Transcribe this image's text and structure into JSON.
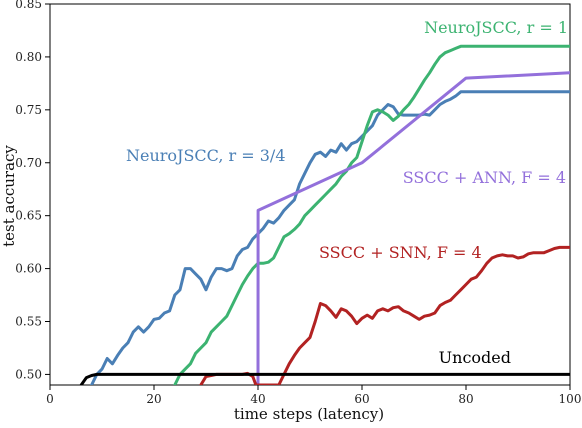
{
  "chart_data": {
    "type": "line",
    "xlabel": "time steps (latency)",
    "ylabel": "test accuracy",
    "xlim": [
      0,
      100
    ],
    "ylim": [
      0.49,
      0.85
    ],
    "xticks": [
      "0",
      "20",
      "40",
      "60",
      "80",
      "100"
    ],
    "yticks": [
      "0.50",
      "0.55",
      "0.60",
      "0.65",
      "0.70",
      "0.75",
      "0.80",
      "0.85"
    ],
    "grid": false,
    "series": [
      {
        "name": "NeuroJSCC, r = 3/4",
        "color": "#4a7fb5",
        "points": [
          [
            8,
            0.49
          ],
          [
            9,
            0.5
          ],
          [
            10,
            0.505
          ],
          [
            11,
            0.515
          ],
          [
            12,
            0.51
          ],
          [
            13,
            0.518
          ],
          [
            14,
            0.525
          ],
          [
            15,
            0.53
          ],
          [
            16,
            0.54
          ],
          [
            17,
            0.545
          ],
          [
            18,
            0.54
          ],
          [
            19,
            0.545
          ],
          [
            20,
            0.552
          ],
          [
            21,
            0.553
          ],
          [
            22,
            0.558
          ],
          [
            23,
            0.56
          ],
          [
            24,
            0.575
          ],
          [
            25,
            0.58
          ],
          [
            26,
            0.6
          ],
          [
            27,
            0.6
          ],
          [
            28,
            0.595
          ],
          [
            29,
            0.59
          ],
          [
            30,
            0.58
          ],
          [
            31,
            0.592
          ],
          [
            32,
            0.6
          ],
          [
            33,
            0.6
          ],
          [
            34,
            0.598
          ],
          [
            35,
            0.6
          ],
          [
            36,
            0.612
          ],
          [
            37,
            0.618
          ],
          [
            38,
            0.62
          ],
          [
            39,
            0.628
          ],
          [
            40,
            0.633
          ],
          [
            41,
            0.638
          ],
          [
            42,
            0.645
          ],
          [
            43,
            0.643
          ],
          [
            44,
            0.648
          ],
          [
            45,
            0.655
          ],
          [
            46,
            0.66
          ],
          [
            47,
            0.665
          ],
          [
            48,
            0.68
          ],
          [
            49,
            0.69
          ],
          [
            50,
            0.7
          ],
          [
            51,
            0.708
          ],
          [
            52,
            0.71
          ],
          [
            53,
            0.706
          ],
          [
            54,
            0.712
          ],
          [
            55,
            0.71
          ],
          [
            56,
            0.718
          ],
          [
            57,
            0.712
          ],
          [
            58,
            0.718
          ],
          [
            59,
            0.72
          ],
          [
            60,
            0.725
          ],
          [
            61,
            0.73
          ],
          [
            62,
            0.735
          ],
          [
            63,
            0.745
          ],
          [
            64,
            0.75
          ],
          [
            65,
            0.755
          ],
          [
            66,
            0.753
          ],
          [
            67,
            0.746
          ],
          [
            68,
            0.745
          ],
          [
            69,
            0.745
          ],
          [
            70,
            0.745
          ],
          [
            71,
            0.745
          ],
          [
            72,
            0.746
          ],
          [
            73,
            0.745
          ],
          [
            74,
            0.75
          ],
          [
            75,
            0.755
          ],
          [
            76,
            0.758
          ],
          [
            77,
            0.76
          ],
          [
            78,
            0.763
          ],
          [
            79,
            0.767
          ],
          [
            80,
            0.767
          ],
          [
            90,
            0.767
          ],
          [
            100,
            0.767
          ]
        ]
      },
      {
        "name": "NeuroJSCC, r = 1",
        "color": "#3cb371",
        "points": [
          [
            24,
            0.49
          ],
          [
            25,
            0.5
          ],
          [
            26,
            0.505
          ],
          [
            27,
            0.51
          ],
          [
            28,
            0.52
          ],
          [
            29,
            0.525
          ],
          [
            30,
            0.53
          ],
          [
            31,
            0.54
          ],
          [
            32,
            0.545
          ],
          [
            33,
            0.55
          ],
          [
            34,
            0.555
          ],
          [
            35,
            0.565
          ],
          [
            36,
            0.575
          ],
          [
            37,
            0.585
          ],
          [
            38,
            0.593
          ],
          [
            39,
            0.6
          ],
          [
            40,
            0.605
          ],
          [
            41,
            0.605
          ],
          [
            42,
            0.606
          ],
          [
            43,
            0.61
          ],
          [
            44,
            0.62
          ],
          [
            45,
            0.63
          ],
          [
            46,
            0.633
          ],
          [
            47,
            0.637
          ],
          [
            48,
            0.642
          ],
          [
            49,
            0.65
          ],
          [
            50,
            0.655
          ],
          [
            51,
            0.66
          ],
          [
            52,
            0.665
          ],
          [
            53,
            0.67
          ],
          [
            54,
            0.675
          ],
          [
            55,
            0.68
          ],
          [
            56,
            0.687
          ],
          [
            57,
            0.692
          ],
          [
            58,
            0.7
          ],
          [
            59,
            0.705
          ],
          [
            60,
            0.72
          ],
          [
            61,
            0.735
          ],
          [
            62,
            0.748
          ],
          [
            63,
            0.75
          ],
          [
            64,
            0.748
          ],
          [
            65,
            0.745
          ],
          [
            66,
            0.74
          ],
          [
            67,
            0.744
          ],
          [
            68,
            0.75
          ],
          [
            69,
            0.755
          ],
          [
            70,
            0.762
          ],
          [
            71,
            0.77
          ],
          [
            72,
            0.778
          ],
          [
            73,
            0.785
          ],
          [
            74,
            0.793
          ],
          [
            75,
            0.8
          ],
          [
            76,
            0.804
          ],
          [
            77,
            0.806
          ],
          [
            78,
            0.808
          ],
          [
            79,
            0.81
          ],
          [
            80,
            0.81
          ],
          [
            90,
            0.81
          ],
          [
            100,
            0.81
          ]
        ]
      },
      {
        "name": "SSCC + ANN, F = 4",
        "color": "#9370db",
        "points": [
          [
            40,
            0.49
          ],
          [
            40.01,
            0.655
          ],
          [
            60,
            0.7
          ],
          [
            80,
            0.78
          ],
          [
            100,
            0.785
          ]
        ]
      },
      {
        "name": "SSCC + SNN, F = 4",
        "color": "#b22222",
        "points": [
          [
            29,
            0.49
          ],
          [
            30,
            0.498
          ],
          [
            31,
            0.499
          ],
          [
            32,
            0.5
          ],
          [
            35,
            0.5
          ],
          [
            37,
            0.5
          ],
          [
            38,
            0.501
          ],
          [
            39,
            0.498
          ],
          [
            39.6,
            0.49
          ],
          [
            44,
            0.49
          ],
          [
            45,
            0.5
          ],
          [
            46,
            0.51
          ],
          [
            47,
            0.518
          ],
          [
            48,
            0.525
          ],
          [
            49,
            0.53
          ],
          [
            50,
            0.535
          ],
          [
            51,
            0.55
          ],
          [
            52,
            0.567
          ],
          [
            53,
            0.565
          ],
          [
            54,
            0.56
          ],
          [
            55,
            0.554
          ],
          [
            56,
            0.562
          ],
          [
            57,
            0.56
          ],
          [
            58,
            0.555
          ],
          [
            59,
            0.548
          ],
          [
            60,
            0.553
          ],
          [
            61,
            0.556
          ],
          [
            62,
            0.553
          ],
          [
            63,
            0.56
          ],
          [
            64,
            0.562
          ],
          [
            65,
            0.56
          ],
          [
            66,
            0.563
          ],
          [
            67,
            0.564
          ],
          [
            68,
            0.56
          ],
          [
            69,
            0.558
          ],
          [
            70,
            0.555
          ],
          [
            71,
            0.552
          ],
          [
            72,
            0.555
          ],
          [
            73,
            0.556
          ],
          [
            74,
            0.558
          ],
          [
            75,
            0.565
          ],
          [
            76,
            0.568
          ],
          [
            77,
            0.57
          ],
          [
            78,
            0.575
          ],
          [
            79,
            0.58
          ],
          [
            80,
            0.585
          ],
          [
            81,
            0.59
          ],
          [
            82,
            0.592
          ],
          [
            83,
            0.598
          ],
          [
            84,
            0.605
          ],
          [
            85,
            0.61
          ],
          [
            86,
            0.612
          ],
          [
            87,
            0.613
          ],
          [
            88,
            0.612
          ],
          [
            89,
            0.612
          ],
          [
            90,
            0.61
          ],
          [
            91,
            0.611
          ],
          [
            92,
            0.614
          ],
          [
            93,
            0.615
          ],
          [
            94,
            0.615
          ],
          [
            95,
            0.615
          ],
          [
            96,
            0.617
          ],
          [
            97,
            0.619
          ],
          [
            98,
            0.62
          ],
          [
            100,
            0.62
          ]
        ]
      },
      {
        "name": "Uncoded",
        "color": "#000000",
        "points": [
          [
            6,
            0.49
          ],
          [
            7,
            0.497
          ],
          [
            8,
            0.499
          ],
          [
            9,
            0.5
          ],
          [
            100,
            0.5
          ]
        ]
      }
    ]
  }
}
